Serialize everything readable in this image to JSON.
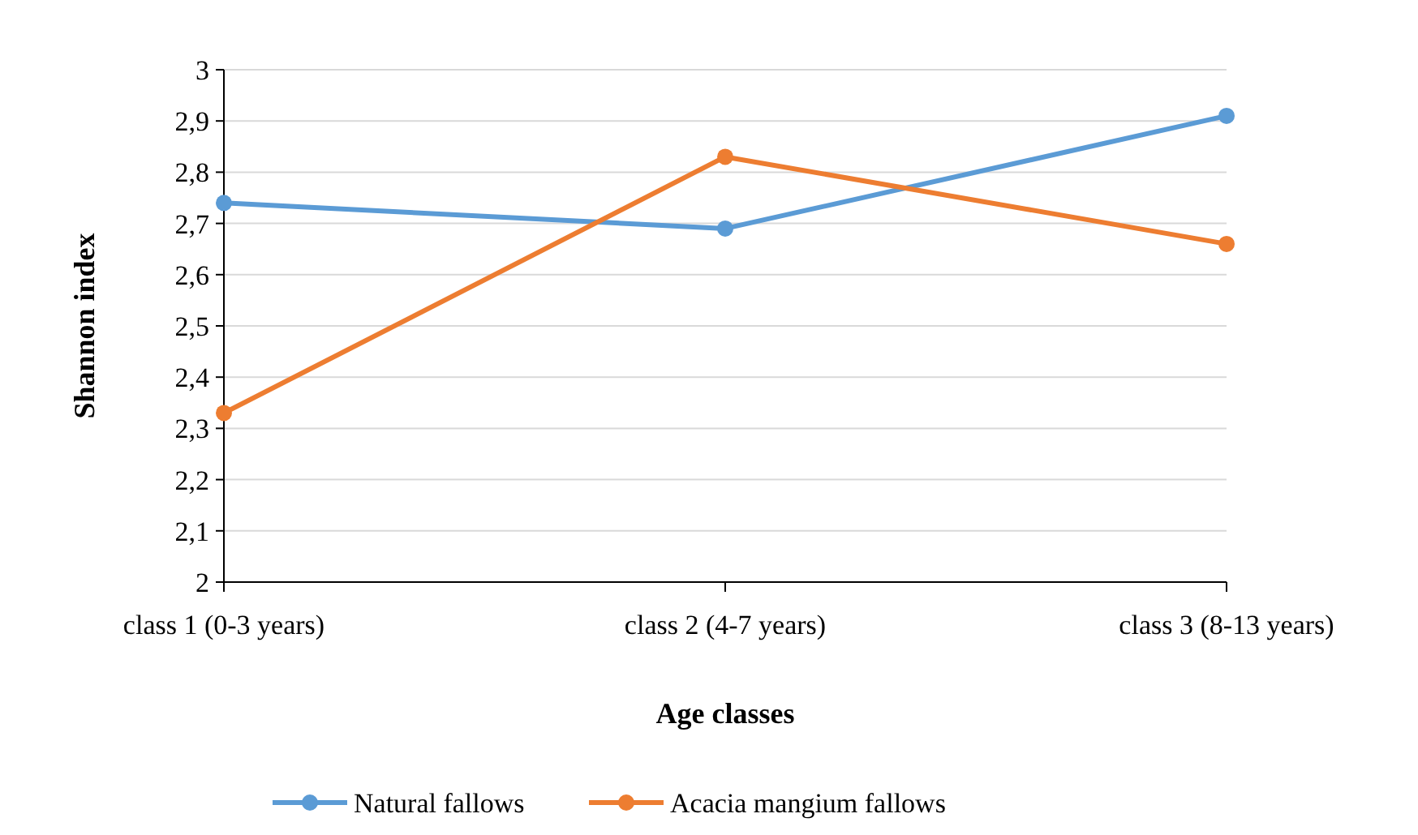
{
  "chart_data": {
    "type": "line",
    "xlabel": "Age classes",
    "ylabel": "Shannon index",
    "categories": [
      "class 1 (0-3 years)",
      "class 2 (4-7 years)",
      "class 3 (8-13 years)"
    ],
    "series": [
      {
        "name": "Natural fallows",
        "color": "#5b9bd5",
        "values": [
          2.74,
          2.69,
          2.91
        ]
      },
      {
        "name": "Acacia mangium fallows",
        "color": "#ed7d31",
        "values": [
          2.33,
          2.83,
          2.66
        ]
      }
    ],
    "ylim": [
      2,
      3
    ],
    "yticks": [
      2,
      {
        "value": 2.1,
        "label": "2,1"
      },
      {
        "value": 2.2,
        "label": "2,2"
      },
      {
        "value": 2.3,
        "label": "2,3"
      },
      {
        "value": 2.4,
        "label": "2,4"
      },
      {
        "value": 2.5,
        "label": "2,5"
      },
      {
        "value": 2.6,
        "label": "2,6"
      },
      {
        "value": 2.7,
        "label": "2,7"
      },
      {
        "value": 2.8,
        "label": "2,8"
      },
      {
        "value": 2.9,
        "label": "2,9"
      },
      3
    ],
    "grid": "y",
    "legend": "bottom",
    "marker": "circle",
    "line_style": "solid"
  }
}
